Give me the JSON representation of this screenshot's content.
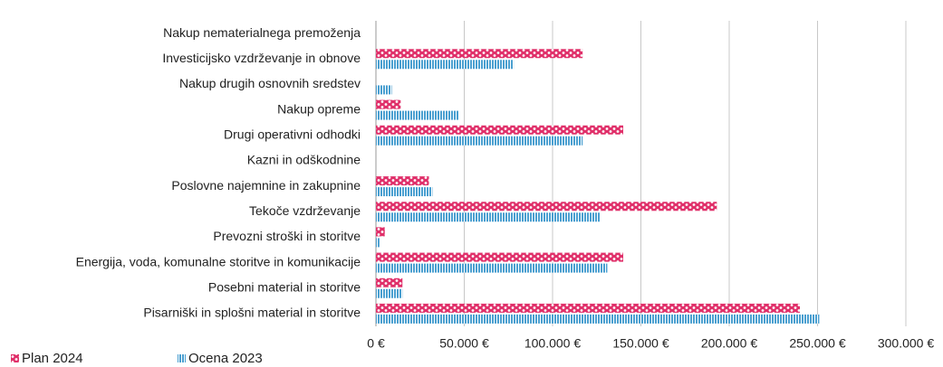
{
  "chart_data": {
    "type": "barh",
    "categories": [
      "Nakup nematerialnega premoženja",
      "Investicijsko vzdrževanje in obnove",
      "Nakup drugih osnovnih sredstev",
      "Nakup opreme",
      "Drugi operativni odhodki",
      "Kazni in odškodnine",
      "Poslovne najemnine in zakupnine",
      "Tekoče vzdrževanje",
      "Prevozni stroški in storitve",
      "Energija, voda, komunalne storitve in komunikacije",
      "Posebni material in storitve",
      "Pisarniški in splošni material in storitve"
    ],
    "series": [
      {
        "name": "Plan 2024",
        "color": "#e0306a",
        "values": [
          0,
          117000,
          0,
          14000,
          140000,
          0,
          30000,
          193000,
          5000,
          140000,
          15000,
          240000
        ]
      },
      {
        "name": "Ocena 2023",
        "color": "#4a9fd0",
        "values": [
          0,
          78000,
          9000,
          47000,
          117000,
          0,
          32000,
          127000,
          2000,
          131000,
          15000,
          251000
        ]
      }
    ],
    "xlim": [
      0,
      300000
    ],
    "xticks": [
      {
        "value": 0,
        "label": "0 €"
      },
      {
        "value": 50000,
        "label": "50.000 €"
      },
      {
        "value": 100000,
        "label": "100.000 €"
      },
      {
        "value": 150000,
        "label": "150.000 €"
      },
      {
        "value": 200000,
        "label": "200.000 €"
      },
      {
        "value": 250000,
        "label": "250.000 €"
      },
      {
        "value": 300000,
        "label": "300.000 €"
      }
    ],
    "grid": true,
    "legend": "bottom-left"
  }
}
